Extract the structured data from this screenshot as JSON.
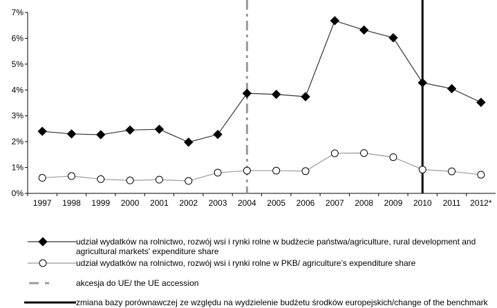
{
  "chart_data": {
    "type": "line",
    "categories": [
      "1997",
      "1998",
      "1999",
      "2000",
      "2001",
      "2002",
      "2003",
      "2004",
      "2005",
      "2006",
      "2007",
      "2008",
      "2009",
      "2010",
      "2011",
      "2012*"
    ],
    "series": [
      {
        "name": "udział wydatków na rolnictwo, rozwój wsi i rynki rolne w budżecie państwa/agriculture, rural development and agricultural markets' expenditure share",
        "color": "#333333",
        "marker": "diamond",
        "values": [
          2.4,
          2.3,
          2.27,
          2.45,
          2.48,
          1.98,
          2.28,
          3.87,
          3.83,
          3.74,
          6.68,
          6.32,
          6.02,
          4.28,
          4.05,
          3.52
        ]
      },
      {
        "name": "udział wydatków na rolnictwo, rozwój wsi i rynki rolne w PKB/ agriculture’s expenditure share",
        "color": "#999999",
        "marker": "circle",
        "values": [
          0.6,
          0.67,
          0.55,
          0.5,
          0.53,
          0.48,
          0.8,
          0.88,
          0.88,
          0.86,
          1.55,
          1.56,
          1.4,
          0.92,
          0.85,
          0.72
        ]
      }
    ],
    "vlines": [
      {
        "at": "2004",
        "label": "akcesja do UE/ the UE accession",
        "color": "#999999",
        "style": "dashed"
      },
      {
        "at": "2010",
        "label": "zmiana bazy porównawczej ze względu na wydzielenie budżetu środków europejskich/change of the benchmark following the separation of the European funds budget",
        "color": "#000000",
        "style": "solid"
      }
    ],
    "ylim": [
      0,
      7
    ],
    "yticks": [
      {
        "value": 0,
        "label": "0%"
      },
      {
        "value": 1,
        "label": "1%"
      },
      {
        "value": 2,
        "label": "2%"
      },
      {
        "value": 3,
        "label": "3%"
      },
      {
        "value": 4,
        "label": "4%"
      },
      {
        "value": 5,
        "label": "5%"
      },
      {
        "value": 6,
        "label": "6%"
      },
      {
        "value": 7,
        "label": "7%"
      }
    ],
    "grid": false
  }
}
